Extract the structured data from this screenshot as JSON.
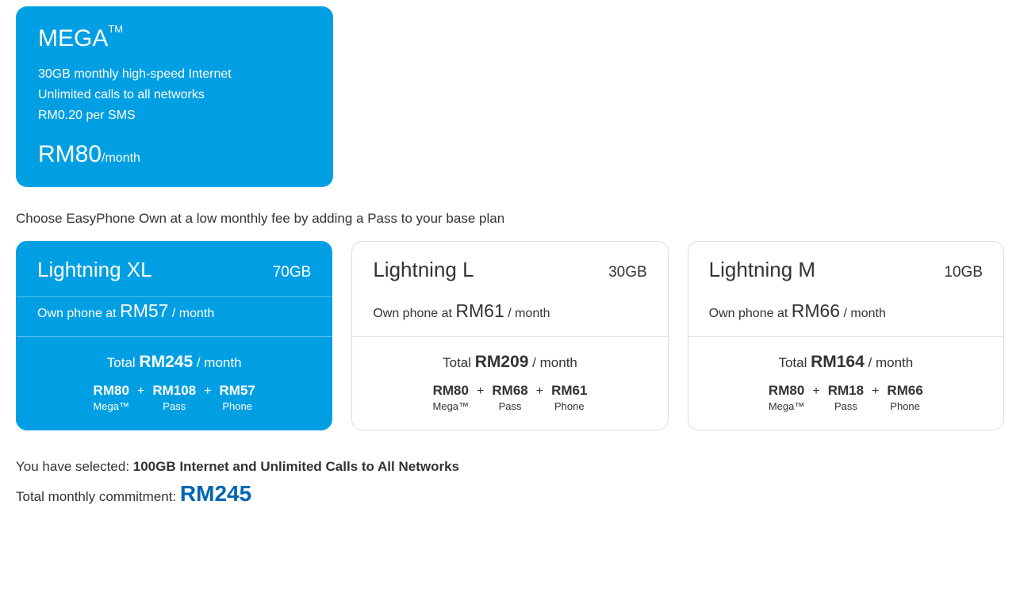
{
  "colors": {
    "brand_blue": "#009fe3",
    "dark_blue": "#0066b3",
    "text": "#333333",
    "border": "#dddddd",
    "bg": "#ffffff"
  },
  "mega": {
    "title": "MEGA",
    "tm": "TM",
    "feature1": "30GB monthly high-speed Internet",
    "feature2": "Unlimited calls to all networks",
    "feature3": "RM0.20 per SMS",
    "price": "RM80",
    "per": "/month"
  },
  "instruction": "Choose EasyPhone Own at a low monthly fee by adding a Pass to your base plan",
  "labels": {
    "own_prefix": "Own phone at ",
    "per_month": " / month",
    "total_prefix": "Total ",
    "plus": "+",
    "mega_label": "Mega™",
    "pass_label": "Pass",
    "phone_label": "Phone"
  },
  "plans": [
    {
      "name": "Lightning XL",
      "data": "70GB",
      "own_price": "RM57",
      "total": "RM245",
      "mega_cost": "RM80",
      "pass_cost": "RM108",
      "phone_cost": "RM57",
      "selected": true
    },
    {
      "name": "Lightning L",
      "data": "30GB",
      "own_price": "RM61",
      "total": "RM209",
      "mega_cost": "RM80",
      "pass_cost": "RM68",
      "phone_cost": "RM61",
      "selected": false
    },
    {
      "name": "Lightning M",
      "data": "10GB",
      "own_price": "RM66",
      "total": "RM164",
      "mega_cost": "RM80",
      "pass_cost": "RM18",
      "phone_cost": "RM66",
      "selected": false
    }
  ],
  "summary": {
    "selected_prefix": "You have selected: ",
    "selected_value": "100GB Internet and Unlimited Calls to All Networks",
    "commit_prefix": "Total monthly commitment: ",
    "commit_value": "RM245"
  }
}
